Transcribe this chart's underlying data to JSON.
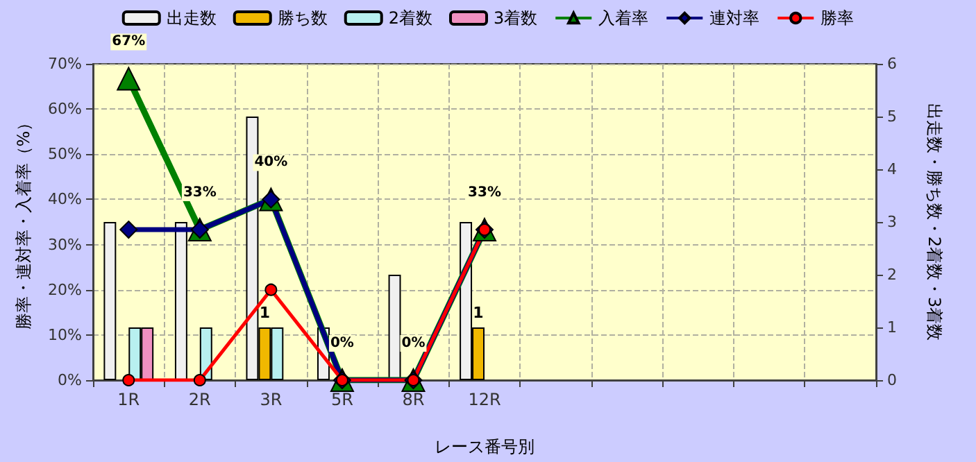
{
  "chart_data": {
    "type": "bar",
    "xlabel": "レース番号別",
    "ylabel": "勝率・連対率・入着率（%）",
    "y2label": "出走数・勝ち数・2着数・3着数",
    "categories": [
      "1R",
      "2R",
      "3R",
      "5R",
      "8R",
      "12R",
      null,
      null,
      null,
      null,
      null
    ],
    "series": [
      {
        "name": "出走数",
        "color": "#f0f0f0",
        "axis": "y2",
        "values": [
          3,
          3,
          5,
          1,
          2,
          3,
          null,
          null,
          null,
          null,
          null
        ]
      },
      {
        "name": "勝ち数",
        "color": "#f0b800",
        "axis": "y2",
        "values": [
          0,
          0,
          1,
          0,
          0,
          1,
          null,
          null,
          null,
          null,
          null
        ],
        "value_labels": [
          null,
          null,
          "1",
          null,
          null,
          "1",
          null,
          null,
          null,
          null,
          null
        ]
      },
      {
        "name": "2着数",
        "color": "#b8f0f0",
        "axis": "y2",
        "values": [
          1,
          1,
          1,
          0,
          0,
          0,
          null,
          null,
          null,
          null,
          null
        ]
      },
      {
        "name": "3着数",
        "color": "#f090c0",
        "axis": "y2",
        "values": [
          1,
          0,
          0,
          0,
          0,
          0,
          null,
          null,
          null,
          null,
          null
        ]
      },
      {
        "name": "入着率",
        "type": "line",
        "color": "#008000",
        "marker": "triangle",
        "values": [
          66.7,
          33.3,
          40,
          0,
          0,
          33.3,
          null,
          null,
          null,
          null,
          null
        ],
        "value_labels": [
          "67%",
          "33%",
          "40%",
          "0%",
          "0%",
          "33%",
          null,
          null,
          null,
          null,
          null
        ]
      },
      {
        "name": "連対率",
        "type": "line",
        "color": "#000080",
        "marker": "diamond",
        "values": [
          33.3,
          33.3,
          40,
          0,
          0,
          33.3,
          null,
          null,
          null,
          null,
          null
        ]
      },
      {
        "name": "勝率",
        "type": "line",
        "color": "#ff0000",
        "marker": "circle",
        "values": [
          0,
          0,
          20,
          0,
          0,
          33.3,
          null,
          null,
          null,
          null,
          null
        ]
      }
    ],
    "ylim": [
      0,
      70
    ],
    "yticks": [
      {
        "value": 0,
        "label": "0%"
      },
      {
        "value": 10,
        "label": "10%"
      },
      {
        "value": 20,
        "label": "20%"
      },
      {
        "value": 30,
        "label": "30%"
      },
      {
        "value": 40,
        "label": "40%"
      },
      {
        "value": 50,
        "label": "50%"
      },
      {
        "value": 60,
        "label": "60%"
      },
      {
        "value": 70,
        "label": "70%"
      }
    ],
    "y2lim": [
      0,
      6
    ],
    "y2ticks": [
      0,
      1,
      2,
      3,
      4,
      5,
      6
    ],
    "grid": true,
    "legend": "top",
    "line_style": "solid"
  }
}
